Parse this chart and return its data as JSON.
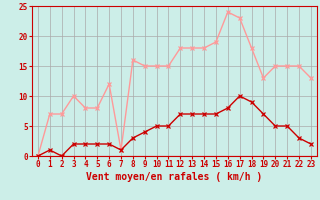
{
  "hours": [
    0,
    1,
    2,
    3,
    4,
    5,
    6,
    7,
    8,
    9,
    10,
    11,
    12,
    13,
    14,
    15,
    16,
    17,
    18,
    19,
    20,
    21,
    22,
    23
  ],
  "wind_avg": [
    0,
    1,
    0,
    2,
    2,
    2,
    2,
    1,
    3,
    4,
    5,
    5,
    7,
    7,
    7,
    7,
    8,
    10,
    9,
    7,
    5,
    5,
    3,
    2
  ],
  "wind_gust": [
    0,
    7,
    7,
    10,
    8,
    8,
    12,
    1,
    16,
    15,
    15,
    15,
    18,
    18,
    18,
    19,
    24,
    23,
    18,
    13,
    15,
    15,
    15,
    13
  ],
  "avg_color": "#cc0000",
  "gust_color": "#ff9999",
  "bg_color": "#cceee8",
  "grid_color": "#aaaaaa",
  "xlabel": "Vent moyen/en rafales ( km/h )",
  "ylim": [
    0,
    25
  ],
  "yticks": [
    0,
    5,
    10,
    15,
    20,
    25
  ],
  "xticks": [
    0,
    1,
    2,
    3,
    4,
    5,
    6,
    7,
    8,
    9,
    10,
    11,
    12,
    13,
    14,
    15,
    16,
    17,
    18,
    19,
    20,
    21,
    22,
    23
  ],
  "tick_label_fontsize": 5.5,
  "xlabel_fontsize": 7.0
}
